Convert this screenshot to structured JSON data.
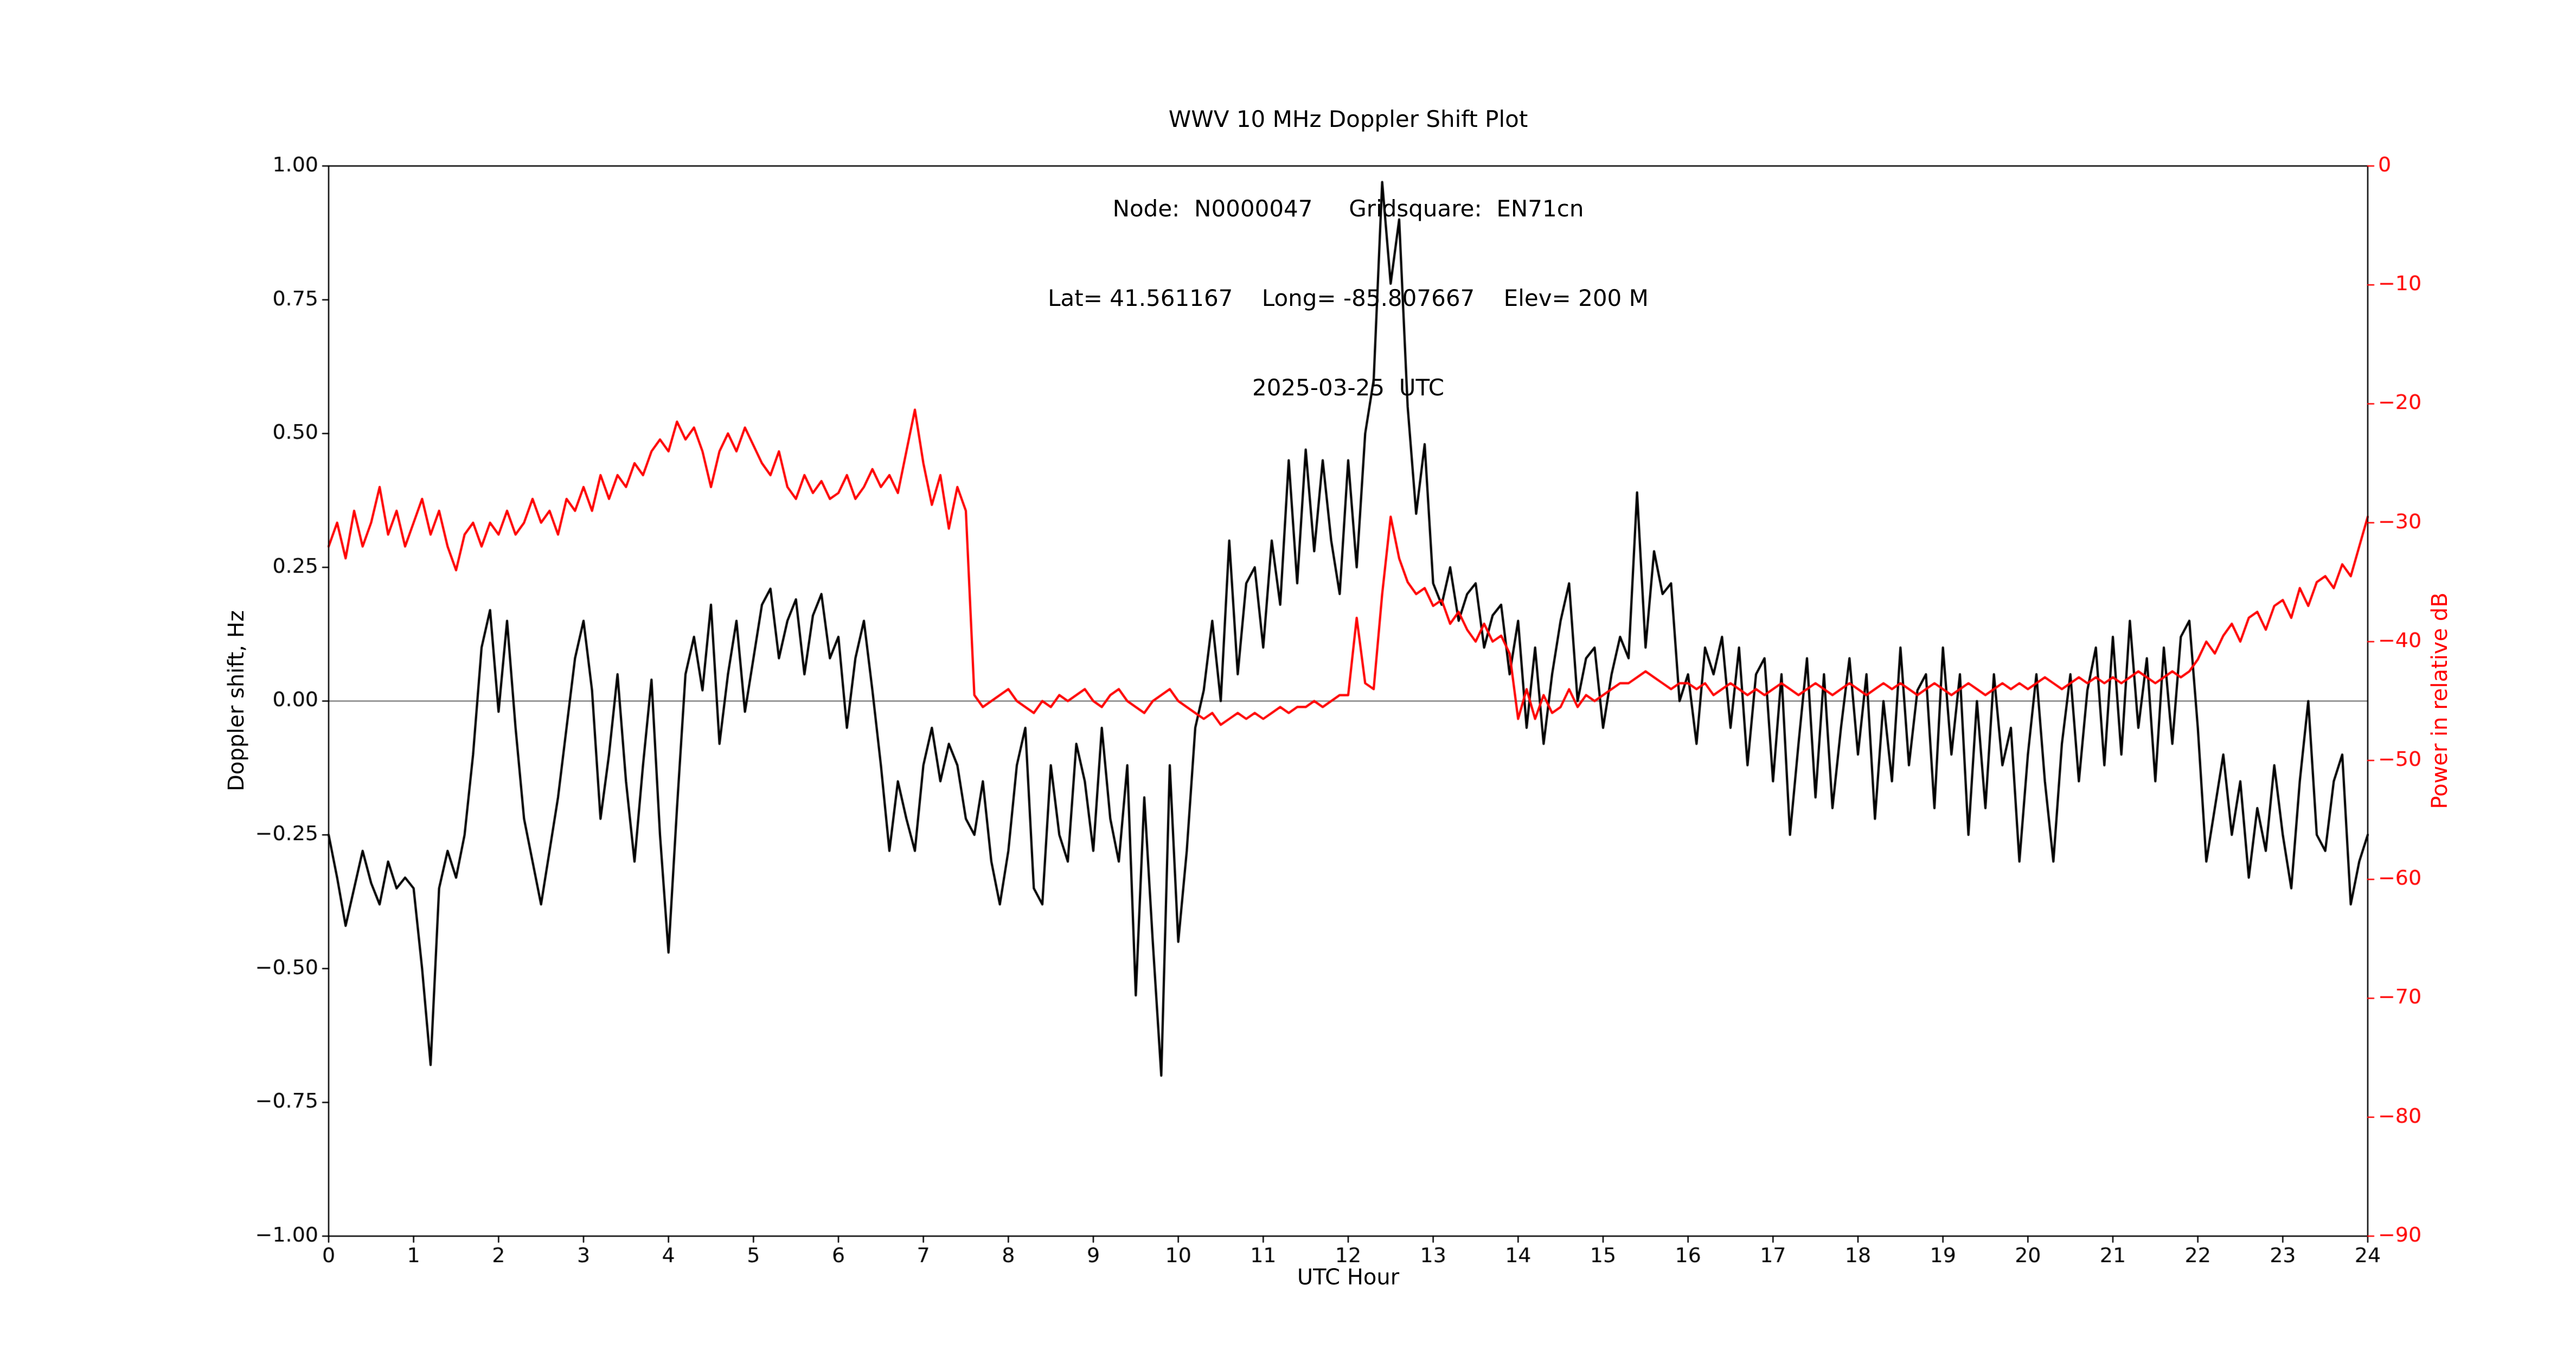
{
  "page": {
    "background": "#ffffff"
  },
  "title": {
    "line1": "WWV 10 MHz Doppler Shift Plot",
    "line2": "Node:  N0000047     Gridsquare:  EN71cn",
    "line3": "Lat= 41.561167    Long= -85.807667    Elev= 200 M",
    "line4": "2025-03-25  UTC"
  },
  "station": {
    "node": "N0000047",
    "gridsquare": "EN71cn",
    "lat": "41.561167",
    "long": "-85.807667",
    "elev": "200 M",
    "date": "2025-03-25",
    "timezone": "UTC"
  },
  "chart_data": {
    "type": "line",
    "title_lines": [
      "WWV 10 MHz Doppler Shift Plot",
      "Node:  N0000047     Gridsquare:  EN71cn",
      "Lat= 41.561167    Long= -85.807667    Elev= 200 M",
      "2025-03-25  UTC"
    ],
    "xlabel": "UTC Hour",
    "ylabel_left": "Doppler shift, Hz",
    "ylabel_right": "Power in relative dB",
    "xlim": [
      0,
      24
    ],
    "ylim_left": [
      -1.0,
      1.0
    ],
    "ylim_right": [
      -90,
      0
    ],
    "grid": false,
    "legend": "none",
    "zero_line": 0,
    "xticks": [
      0,
      1,
      2,
      3,
      4,
      5,
      6,
      7,
      8,
      9,
      10,
      11,
      12,
      13,
      14,
      15,
      16,
      17,
      18,
      19,
      20,
      21,
      22,
      23,
      24
    ],
    "xtick_labels": [
      "0",
      "1",
      "2",
      "3",
      "4",
      "5",
      "6",
      "7",
      "8",
      "9",
      "10",
      "11",
      "12",
      "13",
      "14",
      "15",
      "16",
      "17",
      "18",
      "19",
      "20",
      "21",
      "22",
      "23",
      "24"
    ],
    "yticks_left": [
      -1.0,
      -0.75,
      -0.5,
      -0.25,
      0,
      0.25,
      0.5,
      0.75,
      1.0
    ],
    "ytick_labels_left": [
      "−1.00",
      "−0.75",
      "−0.50",
      "−0.25",
      "0.00",
      "0.25",
      "0.50",
      "0.75",
      "1.00"
    ],
    "yticks_right": [
      -90,
      -80,
      -70,
      -60,
      -50,
      -40,
      -30,
      -20,
      -10,
      0
    ],
    "ytick_labels_right": [
      "−90",
      "−80",
      "−70",
      "−60",
      "−50",
      "−40",
      "−30",
      "−20",
      "−10",
      "0"
    ],
    "colors": {
      "doppler": "#000000",
      "power": "#ff0000",
      "zero_line": "#808080"
    },
    "series": [
      {
        "name": "Doppler shift, Hz",
        "axis": "left",
        "color": "#000000",
        "x_start": 0,
        "x_step": 0.1,
        "values": [
          -0.25,
          -0.33,
          -0.42,
          -0.35,
          -0.28,
          -0.34,
          -0.38,
          -0.3,
          -0.35,
          -0.33,
          -0.35,
          -0.5,
          -0.68,
          -0.35,
          -0.28,
          -0.33,
          -0.25,
          -0.1,
          0.1,
          0.17,
          -0.02,
          0.15,
          -0.05,
          -0.22,
          -0.3,
          -0.38,
          -0.28,
          -0.18,
          -0.05,
          0.08,
          0.15,
          0.02,
          -0.22,
          -0.1,
          0.05,
          -0.15,
          -0.3,
          -0.12,
          0.04,
          -0.25,
          -0.47,
          -0.2,
          0.05,
          0.12,
          0.02,
          0.18,
          -0.08,
          0.05,
          0.15,
          -0.02,
          0.08,
          0.18,
          0.21,
          0.08,
          0.15,
          0.19,
          0.05,
          0.16,
          0.2,
          0.08,
          0.12,
          -0.05,
          0.08,
          0.15,
          0.02,
          -0.12,
          -0.28,
          -0.15,
          -0.22,
          -0.28,
          -0.12,
          -0.05,
          -0.15,
          -0.08,
          -0.12,
          -0.22,
          -0.25,
          -0.15,
          -0.3,
          -0.38,
          -0.28,
          -0.12,
          -0.05,
          -0.35,
          -0.38,
          -0.12,
          -0.25,
          -0.3,
          -0.08,
          -0.15,
          -0.28,
          -0.05,
          -0.22,
          -0.3,
          -0.12,
          -0.55,
          -0.18,
          -0.45,
          -0.7,
          -0.12,
          -0.45,
          -0.28,
          -0.05,
          0.02,
          0.15,
          0,
          0.3,
          0.05,
          0.22,
          0.25,
          0.1,
          0.3,
          0.18,
          0.45,
          0.22,
          0.47,
          0.28,
          0.45,
          0.3,
          0.2,
          0.45,
          0.25,
          0.5,
          0.6,
          0.97,
          0.78,
          0.9,
          0.55,
          0.35,
          0.48,
          0.22,
          0.18,
          0.25,
          0.15,
          0.2,
          0.22,
          0.1,
          0.16,
          0.18,
          0.05,
          0.15,
          -0.05,
          0.1,
          -0.08,
          0.05,
          0.15,
          0.22,
          0,
          0.08,
          0.1,
          -0.05,
          0.05,
          0.12,
          0.08,
          0.39,
          0.1,
          0.28,
          0.2,
          0.22,
          0,
          0.05,
          -0.08,
          0.1,
          0.05,
          0.12,
          -0.05,
          0.1,
          -0.12,
          0.05,
          0.08,
          -0.15,
          0.05,
          -0.25,
          -0.08,
          0.08,
          -0.18,
          0.05,
          -0.2,
          -0.05,
          0.08,
          -0.1,
          0.05,
          -0.22,
          0,
          -0.15,
          0.1,
          -0.12,
          0.02,
          0.05,
          -0.2,
          0.1,
          -0.1,
          0.05,
          -0.25,
          0,
          -0.2,
          0.05,
          -0.12,
          -0.05,
          -0.3,
          -0.1,
          0.05,
          -0.15,
          -0.3,
          -0.08,
          0.05,
          -0.15,
          0.02,
          0.1,
          -0.12,
          0.12,
          -0.1,
          0.15,
          -0.05,
          0.08,
          -0.15,
          0.1,
          -0.08,
          0.12,
          0.15,
          -0.05,
          -0.3,
          -0.2,
          -0.1,
          -0.25,
          -0.15,
          -0.33,
          -0.2,
          -0.28,
          -0.12,
          -0.25,
          -0.35,
          -0.15,
          0,
          -0.25,
          -0.28,
          -0.15,
          -0.1,
          -0.38,
          -0.3,
          -0.25
        ]
      },
      {
        "name": "Power in relative dB",
        "axis": "right",
        "color": "#ff0000",
        "x_start": 0,
        "x_step": 0.1,
        "values": [
          -32,
          -30,
          -33,
          -29,
          -32,
          -30,
          -27,
          -31,
          -29,
          -32,
          -30,
          -28,
          -31,
          -29,
          -32,
          -34,
          -31,
          -30,
          -32,
          -30,
          -31,
          -29,
          -31,
          -30,
          -28,
          -30,
          -29,
          -31,
          -28,
          -29,
          -27,
          -29,
          -26,
          -28,
          -26,
          -27,
          -25,
          -26,
          -24,
          -23,
          -24,
          -21.5,
          -23,
          -22,
          -24,
          -27,
          -24,
          -22.5,
          -24,
          -22,
          -23.5,
          -25,
          -26,
          -24,
          -27,
          -28,
          -26,
          -27.5,
          -26.5,
          -28,
          -27.5,
          -26,
          -28,
          -27,
          -25.5,
          -27,
          -26,
          -27.5,
          -24,
          -20.5,
          -25,
          -28.5,
          -26,
          -30.5,
          -27,
          -29,
          -44.5,
          -45.5,
          -45,
          -44.5,
          -44,
          -45,
          -45.5,
          -46,
          -45,
          -45.5,
          -44.5,
          -45,
          -44.5,
          -44,
          -45,
          -45.5,
          -44.5,
          -44,
          -45,
          -45.5,
          -46,
          -45,
          -44.5,
          -44,
          -45,
          -45.5,
          -46,
          -46.5,
          -46,
          -47,
          -46.5,
          -46,
          -46.5,
          -46,
          -46.5,
          -46,
          -45.5,
          -46,
          -45.5,
          -45.5,
          -45,
          -45.5,
          -45,
          -44.5,
          -44.5,
          -38,
          -43.5,
          -44,
          -36,
          -29.5,
          -33,
          -35,
          -36,
          -35.5,
          -37,
          -36.5,
          -38.5,
          -37.5,
          -39,
          -40,
          -38.5,
          -40,
          -39.5,
          -41,
          -46.5,
          -44,
          -46.5,
          -44.5,
          -46,
          -45.5,
          -44,
          -45.5,
          -44.5,
          -45,
          -44.5,
          -44,
          -43.5,
          -43.5,
          -43,
          -42.5,
          -43,
          -43.5,
          -44,
          -43.5,
          -43.5,
          -44,
          -43.5,
          -44.5,
          -44,
          -43.5,
          -44,
          -44.5,
          -44,
          -44.5,
          -44,
          -43.5,
          -44,
          -44.5,
          -44,
          -43.5,
          -44,
          -44.5,
          -44,
          -43.5,
          -44,
          -44.5,
          -44,
          -43.5,
          -44,
          -43.5,
          -44,
          -44.5,
          -44,
          -43.5,
          -44,
          -44.5,
          -44,
          -43.5,
          -44,
          -44.5,
          -44,
          -43.5,
          -44,
          -43.5,
          -44,
          -43.5,
          -43,
          -43.5,
          -44,
          -43.5,
          -43,
          -43.5,
          -43,
          -43.5,
          -43,
          -43.5,
          -43,
          -42.5,
          -43,
          -43.5,
          -43,
          -42.5,
          -43,
          -42.5,
          -41.5,
          -40,
          -41,
          -39.5,
          -38.5,
          -40,
          -38,
          -37.5,
          -39,
          -37,
          -36.5,
          -38,
          -35.5,
          -37,
          -35,
          -34.5,
          -35.5,
          -33.5,
          -34.5,
          -32,
          -29.5
        ]
      }
    ]
  }
}
